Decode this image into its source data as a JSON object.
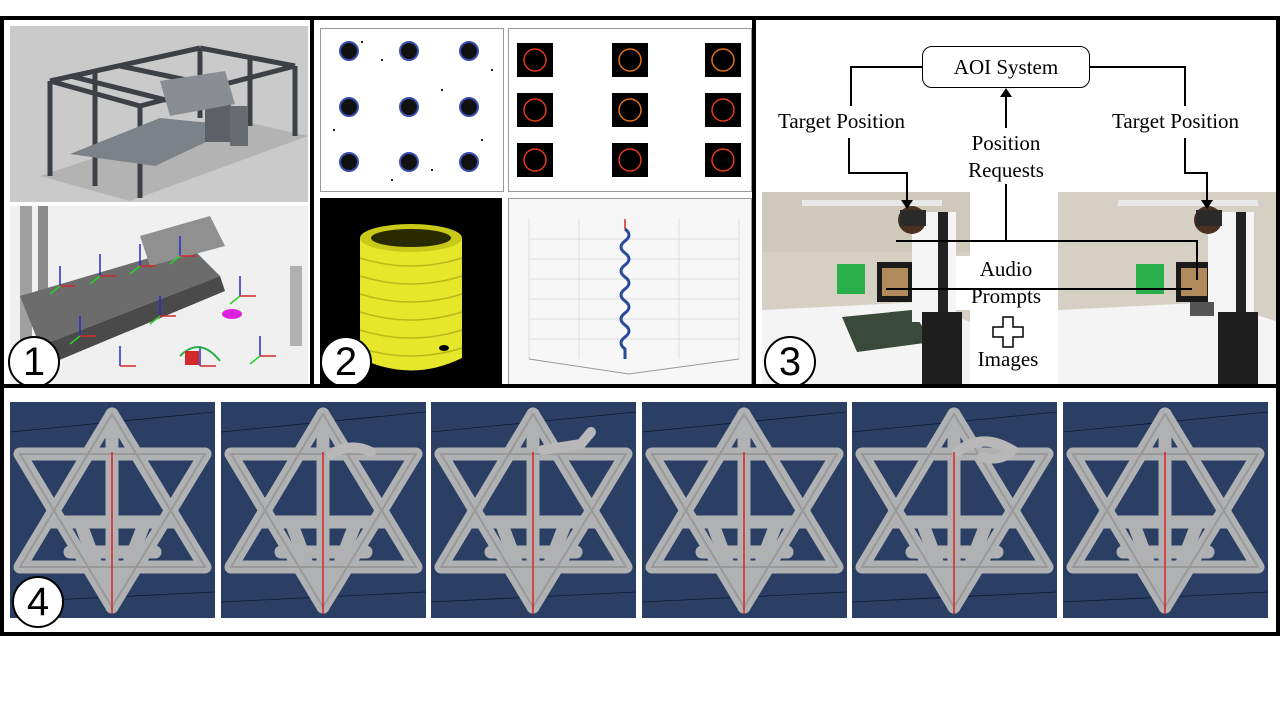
{
  "panels": {
    "p1": {
      "number": "1"
    },
    "p2": {
      "number": "2"
    },
    "p3": {
      "number": "3",
      "aoi_system": "AOI System",
      "target_position_left": "Target Position",
      "target_position_right": "Target Position",
      "position_requests_line1": "Position",
      "position_requests_line2": "Requests",
      "audio_prompts_line1": "Audio",
      "audio_prompts_line2": "Prompts",
      "images": "Images"
    },
    "p4": {
      "number": "4",
      "frame_count": 6
    }
  },
  "colors": {
    "panel_border": "#000000",
    "viewport_blue": "#2a3f63",
    "lattice_gray": "#b8b8b8",
    "scan_yellow": "#e6e62a",
    "marker_blue": "#3b4fb0",
    "ring_orange": "#e0701a"
  }
}
